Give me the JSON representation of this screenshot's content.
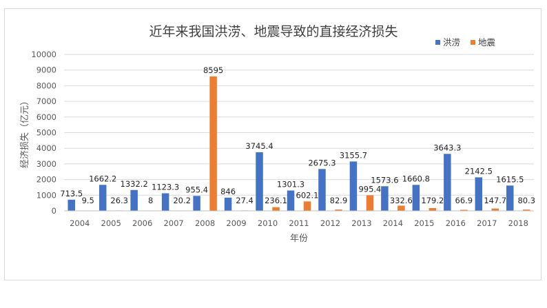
{
  "chart_data": {
    "type": "bar",
    "title": "近年来我国洪涝、地震导致的直接经济损失",
    "xlabel": "年份",
    "ylabel": "经济损失（亿元）",
    "ylim": [
      0,
      10000
    ],
    "yticks": [
      0,
      1000,
      2000,
      3000,
      4000,
      5000,
      6000,
      7000,
      8000,
      9000,
      10000
    ],
    "grid": true,
    "legend_position": "top-right",
    "categories": [
      "2004",
      "2005",
      "2006",
      "2007",
      "2008",
      "2009",
      "2010",
      "2011",
      "2012",
      "2013",
      "2014",
      "2015",
      "2016",
      "2017",
      "2018"
    ],
    "series": [
      {
        "name": "洪涝",
        "color": "#4472c4",
        "values": [
          713.5,
          1662.2,
          1332.2,
          1123.3,
          955.4,
          846,
          3745.4,
          1301.3,
          2675.3,
          3155.7,
          1573.6,
          1660.8,
          3643.3,
          2142.5,
          1615.5
        ],
        "labels": [
          "713.5",
          "1662.2",
          "1332.2",
          "1123.3",
          "955.4",
          "846",
          "3745.4",
          "1301.3",
          "2675.3",
          "3155.7",
          "1573.6",
          "1660.8",
          "3643.3",
          "2142.5",
          "1615.5"
        ]
      },
      {
        "name": "地震",
        "color": "#ed7d31",
        "values": [
          9.5,
          26.3,
          8,
          20.2,
          8595,
          27.4,
          236.1,
          602.1,
          82.9,
          995.4,
          332.6,
          179.2,
          66.9,
          147.7,
          80.3
        ],
        "labels": [
          "9.5",
          "26.3",
          "8",
          "20.2",
          "8595",
          "27.4",
          "236.1",
          "602.1",
          "82.9",
          "995.4",
          "332.6",
          "179.2",
          "66.9",
          "147.7",
          "80.3"
        ]
      }
    ]
  }
}
